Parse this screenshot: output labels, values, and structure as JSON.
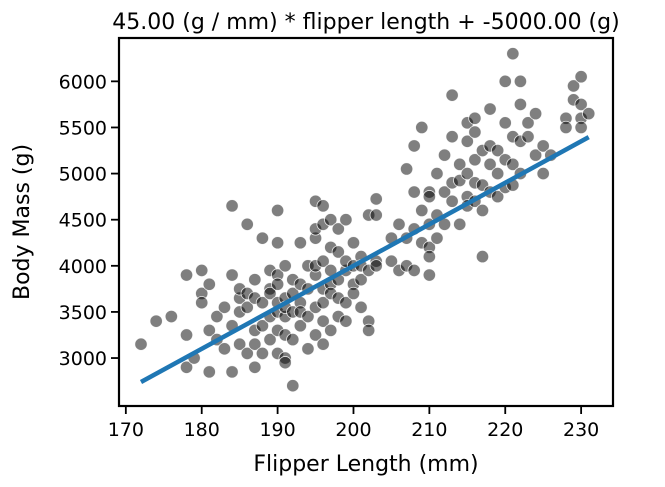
{
  "chart_data": {
    "type": "scatter",
    "title": "45.00 (g / mm) * flipper length + -5000.00 (g)",
    "xlabel": "Flipper Length (mm)",
    "ylabel": "Body Mass (g)",
    "xlim": [
      169.1,
      234.2
    ],
    "ylim": [
      2480,
      6470
    ],
    "xticks": [
      170,
      180,
      190,
      200,
      210,
      220,
      230
    ],
    "yticks": [
      3000,
      3500,
      4000,
      4500,
      5000,
      5500,
      6000
    ],
    "xtick_labels": [
      "170",
      "180",
      "190",
      "200",
      "210",
      "220",
      "230"
    ],
    "ytick_labels": [
      "3000",
      "3500",
      "4000",
      "4500",
      "5000",
      "5500",
      "6000"
    ],
    "grid": false,
    "point_color": "#000000",
    "point_alpha": 0.5,
    "line_color": "#1f77b4",
    "fit_line": {
      "slope": 45,
      "intercept": -5000,
      "x": [
        172,
        231
      ]
    },
    "points": [
      [
        172,
        3150
      ],
      [
        174,
        3400
      ],
      [
        176,
        3450
      ],
      [
        178,
        3900
      ],
      [
        178,
        3250
      ],
      [
        178,
        2900
      ],
      [
        179,
        3000
      ],
      [
        180,
        3950
      ],
      [
        180,
        3700
      ],
      [
        180,
        3600
      ],
      [
        181,
        3800
      ],
      [
        181,
        3300
      ],
      [
        181,
        2850
      ],
      [
        182,
        3200
      ],
      [
        182,
        3450
      ],
      [
        183,
        3550
      ],
      [
        183,
        3100
      ],
      [
        184,
        3900
      ],
      [
        184,
        4650
      ],
      [
        184,
        3350
      ],
      [
        184,
        2850
      ],
      [
        185,
        3650
      ],
      [
        185,
        3750
      ],
      [
        185,
        3150
      ],
      [
        185,
        3500
      ],
      [
        186,
        3700
      ],
      [
        186,
        4450
      ],
      [
        186,
        3550
      ],
      [
        186,
        3050
      ],
      [
        187,
        3650
      ],
      [
        187,
        3300
      ],
      [
        187,
        3850
      ],
      [
        187,
        3150
      ],
      [
        187,
        2900
      ],
      [
        188,
        3600
      ],
      [
        188,
        4300
      ],
      [
        188,
        3350
      ],
      [
        188,
        3050
      ],
      [
        189,
        3200
      ],
      [
        189,
        3450
      ],
      [
        189,
        3950
      ],
      [
        189,
        3750
      ],
      [
        189,
        3700
      ],
      [
        190,
        3900
      ],
      [
        190,
        4250
      ],
      [
        190,
        4600
      ],
      [
        190,
        3500
      ],
      [
        190,
        3600
      ],
      [
        190,
        3800
      ],
      [
        190,
        3050
      ],
      [
        190,
        3300
      ],
      [
        191,
        3650
      ],
      [
        191,
        3450
      ],
      [
        191,
        4000
      ],
      [
        191,
        3550
      ],
      [
        191,
        3000
      ],
      [
        191,
        2950
      ],
      [
        191,
        3250
      ],
      [
        192,
        3700
      ],
      [
        192,
        3850
      ],
      [
        192,
        3500
      ],
      [
        192,
        2700
      ],
      [
        192,
        3200
      ],
      [
        193,
        3600
      ],
      [
        193,
        3800
      ],
      [
        193,
        4250
      ],
      [
        193,
        3350
      ],
      [
        193,
        3500
      ],
      [
        194,
        3750
      ],
      [
        194,
        4000
      ],
      [
        194,
        3450
      ],
      [
        194,
        3100
      ],
      [
        195,
        3550
      ],
      [
        195,
        3900
      ],
      [
        195,
        4300
      ],
      [
        195,
        4400
      ],
      [
        195,
        3250
      ],
      [
        195,
        4700
      ],
      [
        195,
        4000
      ],
      [
        196,
        3750
      ],
      [
        196,
        3600
      ],
      [
        196,
        3150
      ],
      [
        196,
        4050
      ],
      [
        196,
        4650
      ],
      [
        196,
        4450
      ],
      [
        196,
        3400
      ],
      [
        197,
        3800
      ],
      [
        197,
        3950
      ],
      [
        197,
        4200
      ],
      [
        197,
        3300
      ],
      [
        197,
        4500
      ],
      [
        197,
        3700
      ],
      [
        198,
        3850
      ],
      [
        198,
        3650
      ],
      [
        198,
        3450
      ],
      [
        198,
        4150
      ],
      [
        198,
        4400
      ],
      [
        199,
        3950
      ],
      [
        199,
        4050
      ],
      [
        199,
        3600
      ],
      [
        199,
        3400
      ],
      [
        199,
        4500
      ],
      [
        200,
        4000
      ],
      [
        200,
        3800
      ],
      [
        200,
        3700
      ],
      [
        200,
        4250
      ],
      [
        201,
        3850
      ],
      [
        201,
        4100
      ],
      [
        201,
        3550
      ],
      [
        201,
        4000
      ],
      [
        202,
        3400
      ],
      [
        202,
        3950
      ],
      [
        202,
        3300
      ],
      [
        202,
        4550
      ],
      [
        203,
        4050
      ],
      [
        203,
        4000
      ],
      [
        203,
        4725
      ],
      [
        203,
        4550
      ],
      [
        205,
        4050
      ],
      [
        205,
        4300
      ],
      [
        206,
        4450
      ],
      [
        206,
        3950
      ],
      [
        207,
        5050
      ],
      [
        207,
        4000
      ],
      [
        207,
        4300
      ],
      [
        208,
        4400
      ],
      [
        208,
        4800
      ],
      [
        208,
        5300
      ],
      [
        208,
        3950
      ],
      [
        209,
        4600
      ],
      [
        209,
        5500
      ],
      [
        209,
        4250
      ],
      [
        210,
        4800
      ],
      [
        210,
        4750
      ],
      [
        210,
        4200
      ],
      [
        210,
        4450
      ],
      [
        210,
        3900
      ],
      [
        210,
        4100
      ],
      [
        211,
        4550
      ],
      [
        211,
        5000
      ],
      [
        211,
        4300
      ],
      [
        212,
        4800
      ],
      [
        212,
        5200
      ],
      [
        212,
        4450
      ],
      [
        213,
        4900
      ],
      [
        213,
        5400
      ],
      [
        213,
        5850
      ],
      [
        213,
        4700
      ],
      [
        214,
        4925
      ],
      [
        214,
        5100
      ],
      [
        214,
        4450
      ],
      [
        215,
        5000
      ],
      [
        215,
        5550
      ],
      [
        215,
        4750
      ],
      [
        215,
        5350
      ],
      [
        215,
        4650
      ],
      [
        216,
        5150
      ],
      [
        216,
        5600
      ],
      [
        216,
        4900
      ],
      [
        216,
        5450
      ],
      [
        216,
        4700
      ],
      [
        217,
        4875
      ],
      [
        217,
        5250
      ],
      [
        217,
        4600
      ],
      [
        217,
        4100
      ],
      [
        218,
        5100
      ],
      [
        218,
        5700
      ],
      [
        218,
        5300
      ],
      [
        218,
        4800
      ],
      [
        219,
        5000
      ],
      [
        219,
        5250
      ],
      [
        219,
        4750
      ],
      [
        220,
        5550
      ],
      [
        220,
        5150
      ],
      [
        220,
        6000
      ],
      [
        220,
        4850
      ],
      [
        221,
        5400
      ],
      [
        221,
        6300
      ],
      [
        221,
        5100
      ],
      [
        221,
        4875
      ],
      [
        222,
        5350
      ],
      [
        222,
        5750
      ],
      [
        222,
        6000
      ],
      [
        222,
        5000
      ],
      [
        223,
        5550
      ],
      [
        223,
        5400
      ],
      [
        224,
        5200
      ],
      [
        224,
        5650
      ],
      [
        225,
        5000
      ],
      [
        225,
        5300
      ],
      [
        226,
        5200
      ],
      [
        228,
        5600
      ],
      [
        228,
        5500
      ],
      [
        229,
        5800
      ],
      [
        229,
        5950
      ],
      [
        230,
        5600
      ],
      [
        230,
        5500
      ],
      [
        230,
        5750
      ],
      [
        230,
        6050
      ],
      [
        231,
        5650
      ]
    ]
  }
}
